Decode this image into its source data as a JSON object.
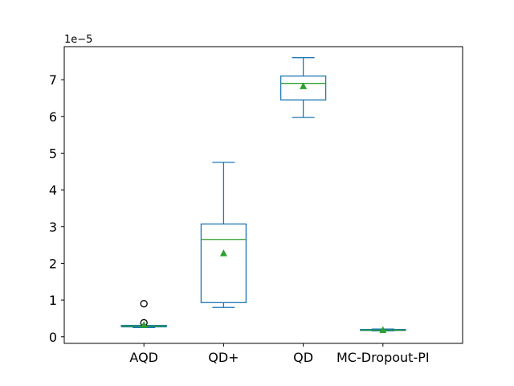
{
  "chart_data": {
    "type": "box",
    "offset_label": "1e−5",
    "ylim": [
      -0.18,
      7.9
    ],
    "yticks": [
      0,
      1,
      2,
      3,
      4,
      5,
      6,
      7
    ],
    "ytick_labels": [
      "0",
      "1",
      "2",
      "3",
      "4",
      "5",
      "6",
      "7"
    ],
    "categories": [
      "AQD",
      "QD+",
      "QD",
      "MC-Dropout-PI"
    ],
    "grid": false,
    "legend": "none",
    "colors": {
      "box": "#1f77b4",
      "median": "#2ca02c",
      "mean": "#2ca02c",
      "flier": "#000000",
      "axis": "#000000"
    },
    "boxes": [
      {
        "category": "AQD",
        "whislo": 0.25,
        "q1": 0.27,
        "median": 0.29,
        "q3": 0.31,
        "whishi": 0.31,
        "mean": 0.33,
        "fliers": [
          0.9,
          0.38
        ]
      },
      {
        "category": "QD+",
        "whislo": 0.8,
        "q1": 0.93,
        "median": 2.65,
        "q3": 3.07,
        "whishi": 4.75,
        "mean": 2.28,
        "fliers": []
      },
      {
        "category": "QD",
        "whislo": 5.97,
        "q1": 6.45,
        "median": 6.9,
        "q3": 7.1,
        "whishi": 7.6,
        "mean": 6.83,
        "fliers": []
      },
      {
        "category": "MC-Dropout-PI",
        "whislo": 0.16,
        "q1": 0.17,
        "median": 0.18,
        "q3": 0.2,
        "whishi": 0.21,
        "mean": 0.19,
        "fliers": []
      }
    ]
  }
}
